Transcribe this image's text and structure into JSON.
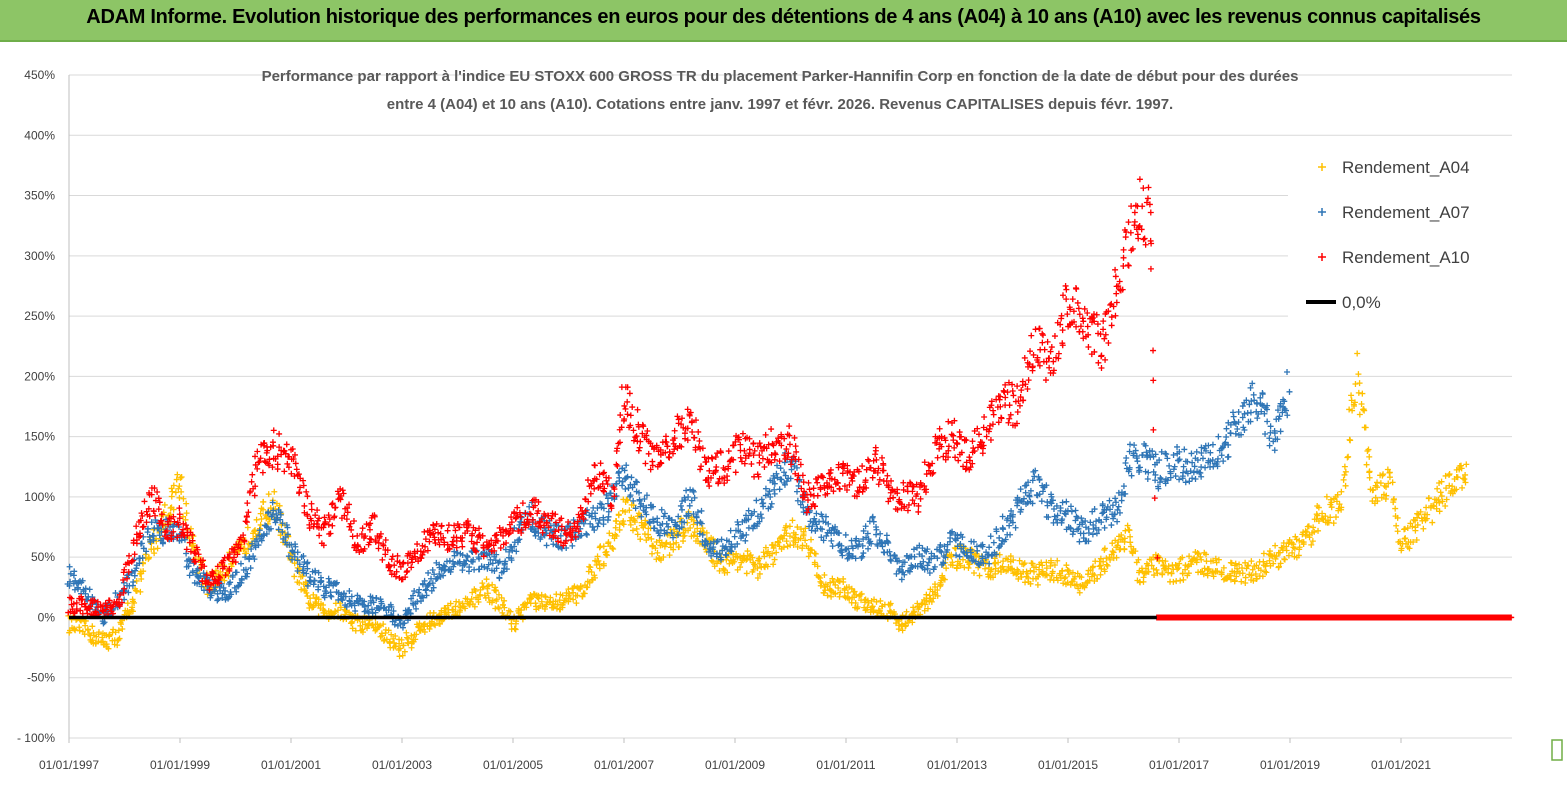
{
  "banner": {
    "title": "ADAM Informe. Evolution historique des performances en euros pour des détentions de 4 ans (A04) à 10 ans (A10) avec les revenus connus capitalisés"
  },
  "chart_data": {
    "type": "scatter",
    "title_line1": "Performance par rapport à l'indice EU STOXX 600 GROSS TR  du placement Parker-Hannifin Corp en fonction de la date de début pour des durées",
    "title_line2": "entre 4 (A04) et 10 ans (A10). Cotations entre janv. 1997 et févr. 2026. Revenus CAPITALISES depuis févr. 1997.",
    "ylim": [
      -100,
      450
    ],
    "y_ticks": [
      "450%",
      "400%",
      "350%",
      "300%",
      "250%",
      "200%",
      "150%",
      "100%",
      "50%",
      "0%",
      "-50%",
      "- 100%"
    ],
    "y_tick_values": [
      450,
      400,
      350,
      300,
      250,
      200,
      150,
      100,
      50,
      0,
      -50,
      -100
    ],
    "xlim": [
      1997.0,
      2023.0
    ],
    "x_ticks": [
      "01/01/1997",
      "01/01/1999",
      "01/01/2001",
      "01/01/2003",
      "01/01/2005",
      "01/01/2007",
      "01/01/2009",
      "01/01/2011",
      "01/01/2013",
      "01/01/2015",
      "01/01/2017",
      "01/01/2019",
      "01/01/2021"
    ],
    "x_tick_values": [
      1997,
      1999,
      2001,
      2003,
      2005,
      2007,
      2009,
      2011,
      2013,
      2015,
      2017,
      2019,
      2021
    ],
    "legend": [
      {
        "name": "Rendement_A04",
        "color": "#ffc000",
        "marker": "+"
      },
      {
        "name": "Rendement_A07",
        "color": "#2e75b6",
        "marker": "+"
      },
      {
        "name": "Rendement_A10",
        "color": "#ff0000",
        "marker": "+"
      },
      {
        "name": "0,0%",
        "color": "#000000",
        "marker": "line"
      }
    ],
    "series": [
      {
        "name": "Rendement_A04",
        "color": "#ffc000",
        "points": [
          [
            1997.0,
            -5
          ],
          [
            1997.3,
            -10
          ],
          [
            1997.6,
            -20
          ],
          [
            1997.9,
            -15
          ],
          [
            1998.2,
            20
          ],
          [
            1998.5,
            60
          ],
          [
            1998.8,
            90
          ],
          [
            1999.0,
            115
          ],
          [
            1999.2,
            60
          ],
          [
            1999.5,
            25
          ],
          [
            1999.8,
            40
          ],
          [
            2000.1,
            55
          ],
          [
            2000.4,
            80
          ],
          [
            2000.7,
            95
          ],
          [
            2001.0,
            50
          ],
          [
            2001.3,
            15
          ],
          [
            2001.6,
            5
          ],
          [
            2001.9,
            5
          ],
          [
            2002.2,
            -5
          ],
          [
            2002.5,
            -5
          ],
          [
            2002.8,
            -20
          ],
          [
            2003.0,
            -25
          ],
          [
            2003.3,
            -10
          ],
          [
            2003.6,
            0
          ],
          [
            2003.9,
            5
          ],
          [
            2004.2,
            10
          ],
          [
            2004.5,
            25
          ],
          [
            2004.8,
            10
          ],
          [
            2005.0,
            -5
          ],
          [
            2005.3,
            15
          ],
          [
            2005.6,
            10
          ],
          [
            2005.9,
            15
          ],
          [
            2006.2,
            20
          ],
          [
            2006.5,
            45
          ],
          [
            2006.8,
            65
          ],
          [
            2007.0,
            90
          ],
          [
            2007.3,
            75
          ],
          [
            2007.6,
            55
          ],
          [
            2007.9,
            65
          ],
          [
            2008.2,
            80
          ],
          [
            2008.5,
            60
          ],
          [
            2008.8,
            45
          ],
          [
            2009.1,
            50
          ],
          [
            2009.4,
            40
          ],
          [
            2009.7,
            55
          ],
          [
            2010.0,
            70
          ],
          [
            2010.3,
            65
          ],
          [
            2010.6,
            25
          ],
          [
            2010.9,
            25
          ],
          [
            2011.2,
            15
          ],
          [
            2011.5,
            10
          ],
          [
            2011.8,
            5
          ],
          [
            2012.0,
            -5
          ],
          [
            2012.3,
            5
          ],
          [
            2012.6,
            20
          ],
          [
            2012.9,
            50
          ],
          [
            2013.2,
            50
          ],
          [
            2013.5,
            40
          ],
          [
            2013.8,
            45
          ],
          [
            2014.1,
            40
          ],
          [
            2014.4,
            35
          ],
          [
            2014.7,
            40
          ],
          [
            2015.0,
            35
          ],
          [
            2015.3,
            25
          ],
          [
            2015.6,
            45
          ],
          [
            2015.9,
            60
          ],
          [
            2016.1,
            70
          ],
          [
            2016.3,
            30
          ],
          [
            2016.6,
            45
          ],
          [
            2016.9,
            35
          ],
          [
            2017.2,
            45
          ],
          [
            2017.5,
            45
          ],
          [
            2017.8,
            40
          ],
          [
            2018.1,
            35
          ],
          [
            2018.4,
            40
          ],
          [
            2018.7,
            50
          ],
          [
            2019.0,
            55
          ],
          [
            2019.3,
            65
          ],
          [
            2019.6,
            90
          ],
          [
            2019.9,
            90
          ],
          [
            2020.2,
            200
          ],
          [
            2020.5,
            105
          ],
          [
            2020.8,
            110
          ],
          [
            2021.0,
            60
          ],
          [
            2021.3,
            75
          ],
          [
            2021.6,
            95
          ],
          [
            2021.9,
            110
          ],
          [
            2022.2,
            120
          ]
        ]
      },
      {
        "name": "Rendement_A07",
        "color": "#2e75b6",
        "points": [
          [
            1997.0,
            35
          ],
          [
            1997.3,
            20
          ],
          [
            1997.6,
            0
          ],
          [
            1997.9,
            15
          ],
          [
            1998.2,
            40
          ],
          [
            1998.5,
            75
          ],
          [
            1998.8,
            70
          ],
          [
            1999.0,
            75
          ],
          [
            1999.2,
            40
          ],
          [
            1999.5,
            25
          ],
          [
            1999.8,
            20
          ],
          [
            2000.1,
            35
          ],
          [
            2000.4,
            60
          ],
          [
            2000.7,
            90
          ],
          [
            2001.0,
            60
          ],
          [
            2001.3,
            35
          ],
          [
            2001.6,
            25
          ],
          [
            2001.9,
            20
          ],
          [
            2002.2,
            10
          ],
          [
            2002.5,
            10
          ],
          [
            2002.8,
            5
          ],
          [
            2003.0,
            -5
          ],
          [
            2003.3,
            20
          ],
          [
            2003.6,
            35
          ],
          [
            2003.9,
            45
          ],
          [
            2004.2,
            45
          ],
          [
            2004.5,
            50
          ],
          [
            2004.8,
            40
          ],
          [
            2005.0,
            60
          ],
          [
            2005.3,
            85
          ],
          [
            2005.6,
            70
          ],
          [
            2005.9,
            65
          ],
          [
            2006.2,
            75
          ],
          [
            2006.5,
            80
          ],
          [
            2006.8,
            100
          ],
          [
            2007.0,
            120
          ],
          [
            2007.3,
            95
          ],
          [
            2007.6,
            80
          ],
          [
            2007.9,
            75
          ],
          [
            2008.2,
            100
          ],
          [
            2008.5,
            60
          ],
          [
            2008.8,
            55
          ],
          [
            2009.1,
            70
          ],
          [
            2009.4,
            85
          ],
          [
            2009.7,
            110
          ],
          [
            2010.0,
            130
          ],
          [
            2010.3,
            85
          ],
          [
            2010.6,
            75
          ],
          [
            2010.9,
            60
          ],
          [
            2011.2,
            55
          ],
          [
            2011.5,
            75
          ],
          [
            2011.8,
            55
          ],
          [
            2012.0,
            40
          ],
          [
            2012.3,
            50
          ],
          [
            2012.6,
            45
          ],
          [
            2012.9,
            65
          ],
          [
            2013.2,
            55
          ],
          [
            2013.5,
            50
          ],
          [
            2013.8,
            70
          ],
          [
            2014.1,
            90
          ],
          [
            2014.4,
            110
          ],
          [
            2014.7,
            90
          ],
          [
            2015.0,
            85
          ],
          [
            2015.3,
            70
          ],
          [
            2015.6,
            85
          ],
          [
            2015.9,
            90
          ],
          [
            2016.1,
            130
          ],
          [
            2016.3,
            135
          ],
          [
            2016.6,
            120
          ],
          [
            2016.9,
            130
          ],
          [
            2017.2,
            125
          ],
          [
            2017.5,
            130
          ],
          [
            2017.8,
            140
          ],
          [
            2018.1,
            165
          ],
          [
            2018.4,
            180
          ],
          [
            2018.7,
            150
          ],
          [
            2019.0,
            190
          ]
        ]
      },
      {
        "name": "Rendement_A10",
        "color": "#ff0000",
        "points": [
          [
            1997.0,
            10
          ],
          [
            1997.3,
            10
          ],
          [
            1997.6,
            5
          ],
          [
            1997.9,
            10
          ],
          [
            1998.2,
            70
          ],
          [
            1998.5,
            100
          ],
          [
            1998.8,
            70
          ],
          [
            1999.0,
            80
          ],
          [
            1999.2,
            60
          ],
          [
            1999.5,
            30
          ],
          [
            1999.8,
            40
          ],
          [
            2000.1,
            60
          ],
          [
            2000.4,
            130
          ],
          [
            2000.7,
            140
          ],
          [
            2001.0,
            130
          ],
          [
            2001.3,
            90
          ],
          [
            2001.6,
            70
          ],
          [
            2001.9,
            100
          ],
          [
            2002.2,
            60
          ],
          [
            2002.5,
            75
          ],
          [
            2002.8,
            45
          ],
          [
            2003.0,
            40
          ],
          [
            2003.3,
            55
          ],
          [
            2003.6,
            70
          ],
          [
            2003.9,
            65
          ],
          [
            2004.2,
            70
          ],
          [
            2004.5,
            60
          ],
          [
            2004.8,
            65
          ],
          [
            2005.0,
            75
          ],
          [
            2005.3,
            90
          ],
          [
            2005.6,
            80
          ],
          [
            2005.9,
            70
          ],
          [
            2006.2,
            80
          ],
          [
            2006.5,
            120
          ],
          [
            2006.8,
            100
          ],
          [
            2007.0,
            185
          ],
          [
            2007.3,
            150
          ],
          [
            2007.6,
            130
          ],
          [
            2007.9,
            150
          ],
          [
            2008.2,
            160
          ],
          [
            2008.5,
            120
          ],
          [
            2008.8,
            125
          ],
          [
            2009.1,
            140
          ],
          [
            2009.4,
            130
          ],
          [
            2009.7,
            145
          ],
          [
            2010.0,
            145
          ],
          [
            2010.3,
            100
          ],
          [
            2010.6,
            110
          ],
          [
            2010.9,
            120
          ],
          [
            2011.2,
            110
          ],
          [
            2011.5,
            130
          ],
          [
            2011.8,
            105
          ],
          [
            2012.0,
            100
          ],
          [
            2012.3,
            100
          ],
          [
            2012.6,
            140
          ],
          [
            2012.9,
            150
          ],
          [
            2013.2,
            135
          ],
          [
            2013.5,
            155
          ],
          [
            2013.8,
            180
          ],
          [
            2014.1,
            175
          ],
          [
            2014.4,
            230
          ],
          [
            2014.7,
            210
          ],
          [
            2015.0,
            260
          ],
          [
            2015.3,
            250
          ],
          [
            2015.6,
            225
          ],
          [
            2015.9,
            270
          ],
          [
            2016.1,
            310
          ],
          [
            2016.3,
            340
          ],
          [
            2016.5,
            330
          ],
          [
            2016.6,
            0
          ],
          [
            2017.0,
            0
          ],
          [
            2018.0,
            0
          ],
          [
            2019.0,
            0
          ],
          [
            2020.0,
            0
          ],
          [
            2021.0,
            0
          ],
          [
            2022.0,
            0
          ],
          [
            2023.0,
            0
          ]
        ]
      }
    ],
    "zero_line": {
      "name": "0,0%",
      "from": 1997.0,
      "to": 2016.6
    }
  }
}
